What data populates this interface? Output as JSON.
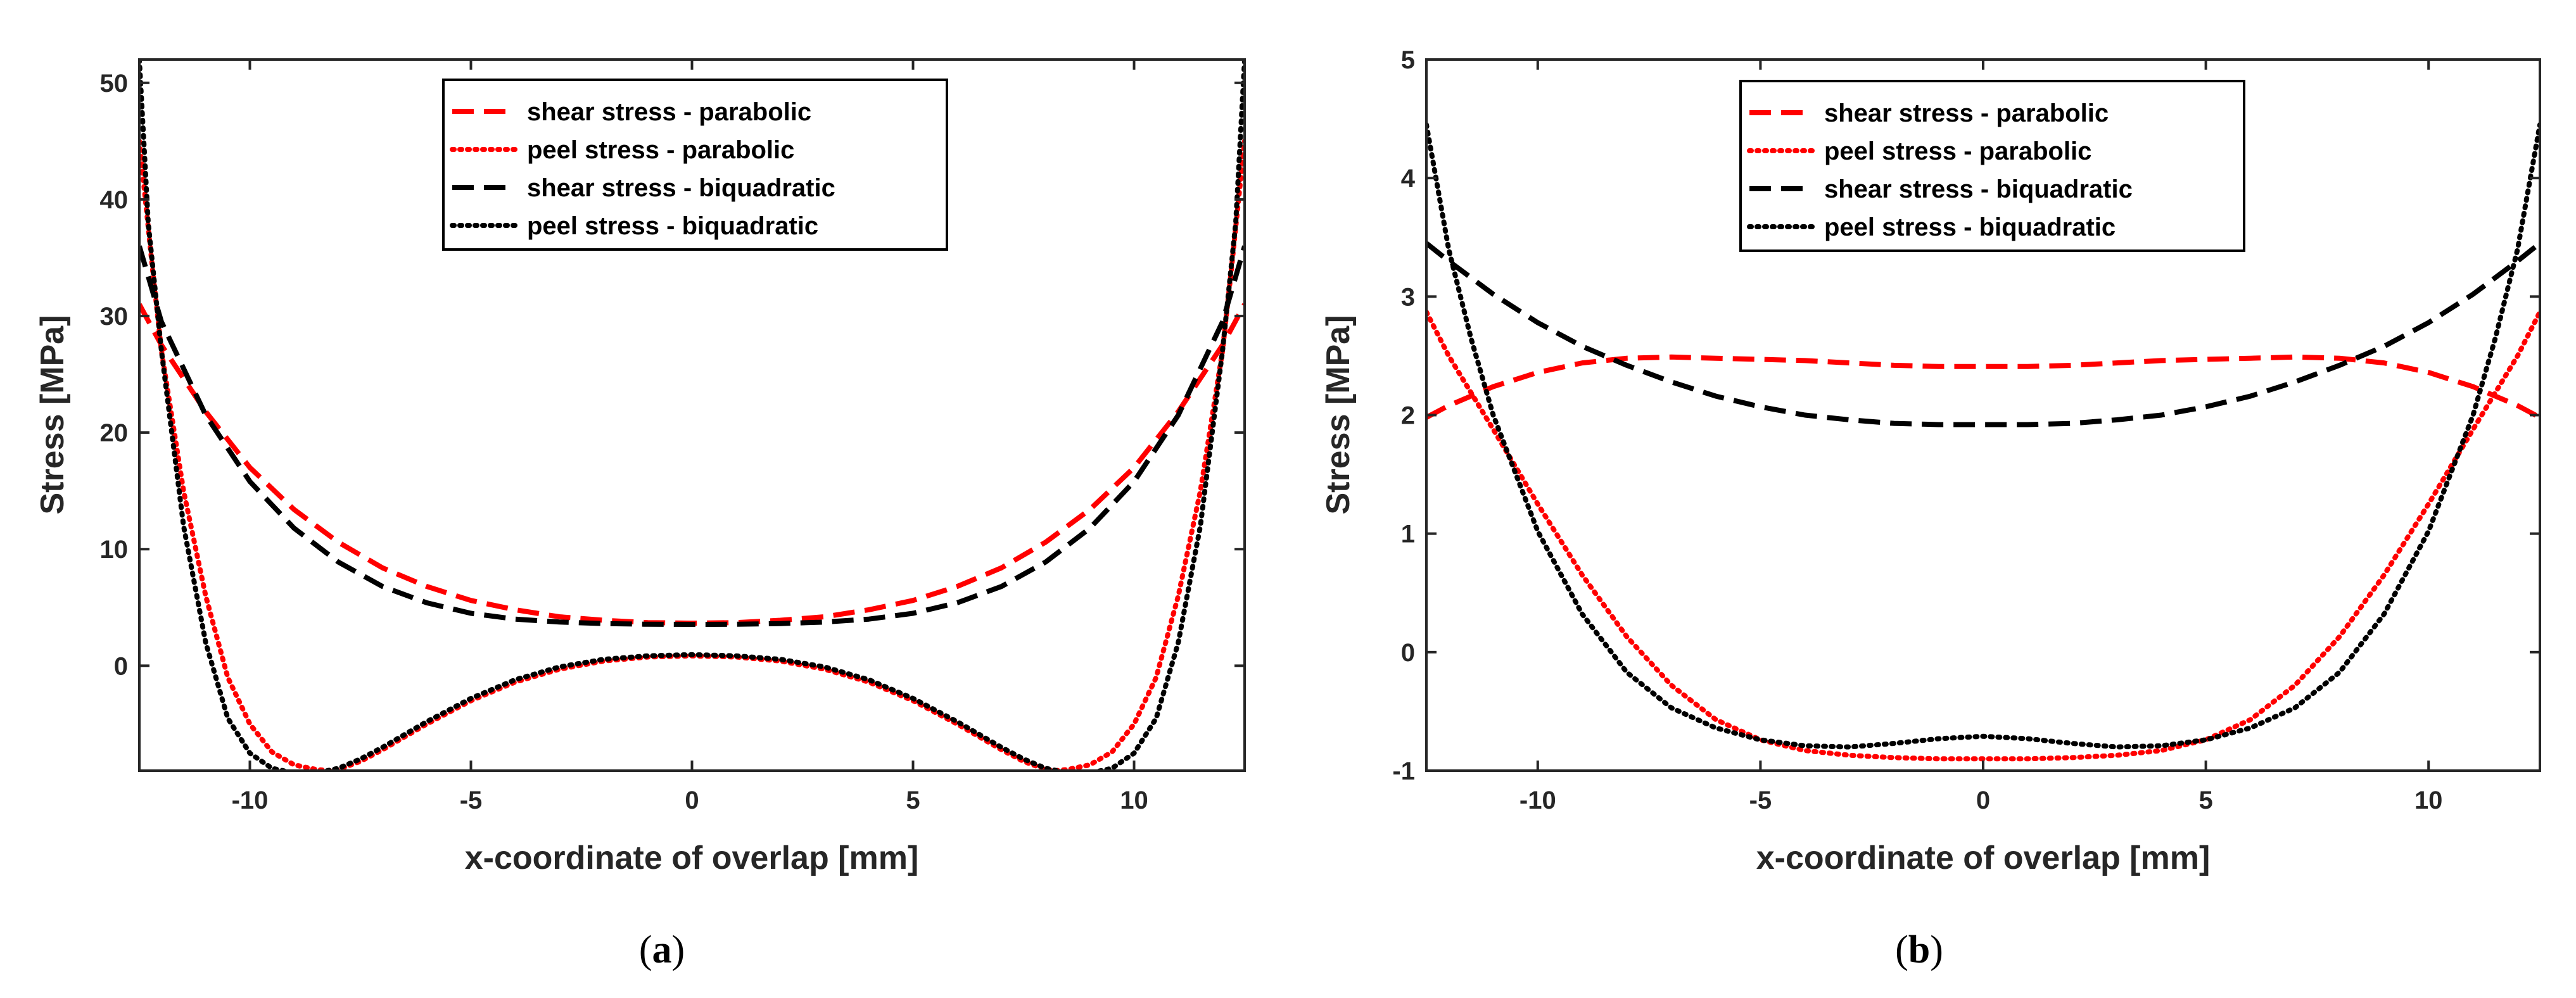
{
  "chart_data": [
    {
      "type": "line",
      "panel": "a",
      "caption": {
        "open": "(",
        "letter": "a",
        "close": ")"
      },
      "xlabel": "x-coordinate of overlap [mm]",
      "ylabel": "Stress [MPa]",
      "xlim": [
        -12.5,
        12.5
      ],
      "ylim": [
        -9,
        52
      ],
      "xticks": [
        -10,
        -5,
        0,
        5,
        10
      ],
      "yticks": [
        0,
        10,
        20,
        30,
        40,
        50
      ],
      "grid": false,
      "legend_position": "top-center",
      "series": [
        {
          "name": "shear stress - parabolic",
          "color": "#ff0000",
          "style": "dashed",
          "x": [
            -12.5,
            -12,
            -11,
            -10,
            -9,
            -8,
            -7,
            -6,
            -5,
            -4,
            -3,
            -2,
            -1,
            0,
            1,
            2,
            3,
            4,
            5,
            6,
            7,
            8,
            9,
            10,
            11,
            12,
            12.5
          ],
          "y": [
            31,
            27.5,
            21.8,
            17,
            13.4,
            10.6,
            8.4,
            6.8,
            5.6,
            4.8,
            4.2,
            3.9,
            3.7,
            3.65,
            3.7,
            3.9,
            4.2,
            4.8,
            5.6,
            6.8,
            8.4,
            10.6,
            13.4,
            17,
            21.8,
            27.5,
            31
          ]
        },
        {
          "name": "peel stress - parabolic",
          "color": "#ff0000",
          "style": "dotted",
          "x": [
            -12.5,
            -12.2,
            -12,
            -11.5,
            -11,
            -10.5,
            -10,
            -9.5,
            -9,
            -8.5,
            -8.2,
            -8,
            -7.5,
            -7,
            -6,
            -5,
            -4,
            -3,
            -2,
            -1,
            0,
            1,
            2,
            3,
            4,
            5,
            6,
            7,
            7.5,
            8,
            8.2,
            8.5,
            9,
            9.5,
            10,
            10.5,
            11,
            11.5,
            12,
            12.2,
            12.5
          ],
          "y": [
            45,
            34,
            27,
            15,
            6,
            -1,
            -5,
            -7.4,
            -8.5,
            -8.9,
            -9,
            -8.9,
            -8.2,
            -7.2,
            -5,
            -3,
            -1.4,
            -0.3,
            0.4,
            0.75,
            0.85,
            0.75,
            0.4,
            -0.3,
            -1.4,
            -3,
            -5,
            -7.2,
            -8.2,
            -8.9,
            -9,
            -8.9,
            -8.5,
            -7.4,
            -5,
            -1,
            6,
            15,
            27,
            34,
            45
          ]
        },
        {
          "name": "shear stress - biquadratic",
          "color": "#000000",
          "style": "dashed",
          "x": [
            -12.5,
            -12,
            -11,
            -10,
            -9,
            -8,
            -7,
            -6,
            -5,
            -4,
            -3,
            -2,
            -1,
            0,
            1,
            2,
            3,
            4,
            5,
            6,
            7,
            8,
            9,
            10,
            11,
            12,
            12.5
          ],
          "y": [
            36,
            29.5,
            21.5,
            15.8,
            11.8,
            8.9,
            6.8,
            5.4,
            4.5,
            4.0,
            3.75,
            3.62,
            3.56,
            3.55,
            3.56,
            3.62,
            3.75,
            4.0,
            4.5,
            5.4,
            6.8,
            8.9,
            11.8,
            15.8,
            21.5,
            29.5,
            36
          ]
        },
        {
          "name": "peel stress - biquadratic",
          "color": "#000000",
          "style": "dotted",
          "x": [
            -12.5,
            -12.3,
            -12,
            -11.5,
            -11,
            -10.5,
            -10,
            -9.5,
            -9,
            -8.5,
            -8,
            -7.5,
            -7,
            -6,
            -5,
            -4,
            -3,
            -2,
            -1,
            0,
            1,
            2,
            3,
            4,
            5,
            6,
            7,
            7.5,
            8,
            8.5,
            9,
            9.5,
            10,
            10.5,
            11,
            11.5,
            12,
            12.3,
            12.5
          ],
          "y": [
            52,
            38,
            27,
            12,
            2,
            -4.5,
            -7.5,
            -8.8,
            -9.2,
            -9.2,
            -8.8,
            -8,
            -7,
            -4.8,
            -2.8,
            -1.2,
            -0.1,
            0.55,
            0.85,
            0.95,
            0.85,
            0.55,
            -0.1,
            -1.2,
            -2.8,
            -4.8,
            -7,
            -8,
            -8.8,
            -9.2,
            -9.2,
            -8.8,
            -7.5,
            -4.5,
            2,
            12,
            27,
            38,
            52
          ]
        }
      ]
    },
    {
      "type": "line",
      "panel": "b",
      "caption": {
        "open": "(",
        "letter": "b",
        "close": ")"
      },
      "xlabel": "x-coordinate of overlap [mm]",
      "ylabel": "Stress [MPa]",
      "xlim": [
        -12.5,
        12.5
      ],
      "ylim": [
        -1,
        5
      ],
      "xticks": [
        -10,
        -5,
        0,
        5,
        10
      ],
      "yticks": [
        -1,
        0,
        1,
        2,
        3,
        4,
        5
      ],
      "grid": false,
      "legend_position": "top-left",
      "series": [
        {
          "name": "shear stress - parabolic",
          "color": "#ff0000",
          "style": "dashed",
          "x": [
            -12.5,
            -12,
            -11,
            -10,
            -9,
            -8,
            -7,
            -6,
            -5,
            -4,
            -3,
            -2,
            -1,
            0,
            1,
            2,
            3,
            4,
            5,
            6,
            7,
            8,
            9,
            10,
            11,
            12,
            12.5
          ],
          "y": [
            1.98,
            2.08,
            2.24,
            2.36,
            2.44,
            2.48,
            2.49,
            2.48,
            2.47,
            2.46,
            2.44,
            2.42,
            2.41,
            2.41,
            2.41,
            2.42,
            2.44,
            2.46,
            2.47,
            2.48,
            2.49,
            2.48,
            2.44,
            2.36,
            2.24,
            2.08,
            1.98
          ]
        },
        {
          "name": "peel stress - parabolic",
          "color": "#ff0000",
          "style": "dotted",
          "x": [
            -12.5,
            -12,
            -11,
            -10,
            -9,
            -8,
            -7,
            -6,
            -5,
            -4,
            -3,
            -2,
            -1,
            0,
            1,
            2,
            3,
            4,
            5,
            6,
            7,
            8,
            9,
            10,
            11,
            12,
            12.5
          ],
          "y": [
            2.87,
            2.5,
            1.88,
            1.25,
            0.65,
            0.13,
            -0.28,
            -0.57,
            -0.74,
            -0.83,
            -0.87,
            -0.89,
            -0.9,
            -0.9,
            -0.9,
            -0.89,
            -0.87,
            -0.83,
            -0.74,
            -0.57,
            -0.28,
            0.13,
            0.65,
            1.25,
            1.88,
            2.5,
            2.87
          ]
        },
        {
          "name": "shear stress - biquadratic",
          "color": "#000000",
          "style": "dashed",
          "x": [
            -12.5,
            -12,
            -11,
            -10,
            -9,
            -8,
            -7,
            -6,
            -5,
            -4,
            -3,
            -2,
            -1,
            0,
            1,
            2,
            3,
            4,
            5,
            6,
            7,
            8,
            9,
            10,
            11,
            12,
            12.5
          ],
          "y": [
            3.45,
            3.3,
            3.02,
            2.78,
            2.58,
            2.42,
            2.28,
            2.16,
            2.07,
            2.0,
            1.96,
            1.93,
            1.92,
            1.92,
            1.92,
            1.93,
            1.96,
            2.0,
            2.07,
            2.16,
            2.28,
            2.42,
            2.58,
            2.78,
            3.02,
            3.3,
            3.45
          ]
        },
        {
          "name": "peel stress - biquadratic",
          "color": "#000000",
          "style": "dotted",
          "x": [
            -12.5,
            -12,
            -11.5,
            -11,
            -10,
            -9,
            -8,
            -7,
            -6,
            -5,
            -4,
            -3,
            -2,
            -1,
            0,
            1,
            2,
            3,
            4,
            5,
            6,
            7,
            8,
            9,
            10,
            11,
            11.5,
            12,
            12.5
          ],
          "y": [
            4.45,
            3.4,
            2.65,
            2.0,
            1.02,
            0.32,
            -0.17,
            -0.47,
            -0.64,
            -0.74,
            -0.79,
            -0.8,
            -0.77,
            -0.73,
            -0.71,
            -0.73,
            -0.77,
            -0.8,
            -0.79,
            -0.74,
            -0.64,
            -0.47,
            -0.17,
            0.32,
            1.02,
            2.0,
            2.65,
            3.4,
            4.45
          ]
        }
      ]
    }
  ]
}
